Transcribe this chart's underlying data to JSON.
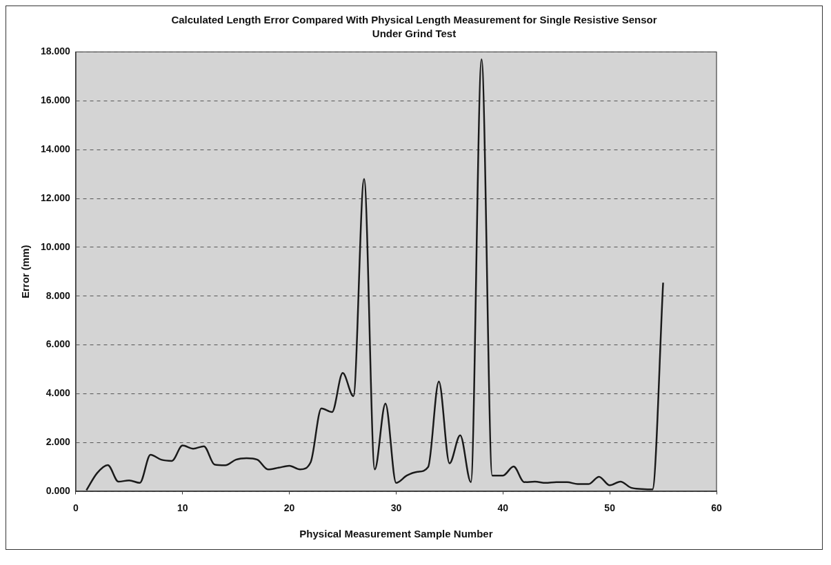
{
  "chart_data": {
    "type": "line",
    "title": "Calculated Length Error Compared With Physical Length Measurement for Single Resistive Sensor Under Grind Test",
    "xlabel": "Physical Measurement Sample Number",
    "ylabel": "Error (mm)",
    "x": [
      1,
      2,
      3,
      4,
      5,
      6,
      7,
      8,
      9,
      10,
      11,
      12,
      13,
      14,
      15,
      16,
      17,
      18,
      19,
      20,
      21,
      22,
      23,
      24,
      25,
      26,
      27,
      28,
      29,
      30,
      31,
      32,
      33,
      34,
      35,
      36,
      37,
      38,
      39,
      40,
      41,
      42,
      43,
      44,
      45,
      46,
      47,
      48,
      49,
      50,
      51,
      52,
      53,
      54,
      55
    ],
    "series": [
      {
        "color": "#1a1a1a",
        "values": [
          0.05,
          0.75,
          1.08,
          0.4,
          0.45,
          0.35,
          1.5,
          1.3,
          1.25,
          1.88,
          1.75,
          1.85,
          1.1,
          1.07,
          1.3,
          1.36,
          1.3,
          0.9,
          0.97,
          1.05,
          0.9,
          1.2,
          3.4,
          3.25,
          4.85,
          3.9,
          12.8,
          0.9,
          3.6,
          0.35,
          0.65,
          0.8,
          1.0,
          4.5,
          1.15,
          2.3,
          0.38,
          17.7,
          0.65,
          0.65,
          1.02,
          0.38,
          0.4,
          0.35,
          0.38,
          0.38,
          0.3,
          0.3,
          0.6,
          0.25,
          0.4,
          0.15,
          0.1,
          0.08,
          8.55
        ]
      }
    ],
    "xlim": [
      0,
      60
    ],
    "xticks": [
      0,
      10,
      20,
      30,
      40,
      50,
      60
    ],
    "ylim": [
      0,
      18
    ],
    "yticks": [
      {
        "value": 0,
        "label": "0.000"
      },
      {
        "value": 2,
        "label": "2.000"
      },
      {
        "value": 4,
        "label": "4.000"
      },
      {
        "value": 6,
        "label": "6.000"
      },
      {
        "value": 8,
        "label": "8.000"
      },
      {
        "value": 10,
        "label": "10.000"
      },
      {
        "value": 12,
        "label": "12.000"
      },
      {
        "value": 14,
        "label": "14.000"
      },
      {
        "value": 16,
        "label": "16.000"
      },
      {
        "value": 18,
        "label": "18.000"
      }
    ],
    "grid": "y",
    "legend": false,
    "marker": "none",
    "line_style": "solid"
  }
}
